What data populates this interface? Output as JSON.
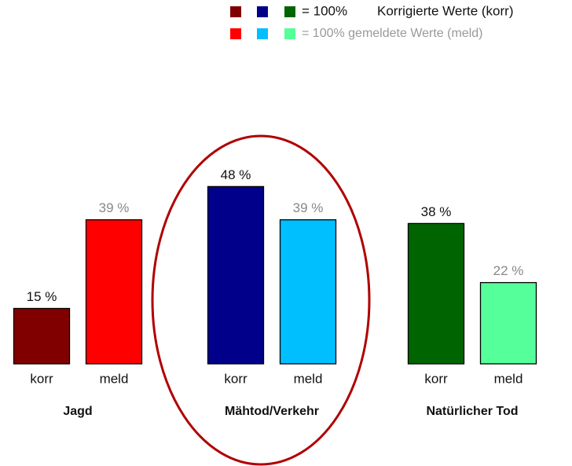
{
  "chart_data": {
    "type": "bar",
    "categories": [
      "Jagd",
      "Mähtod/Verkehr",
      "Natürlicher Tod"
    ],
    "series": [
      {
        "name": "korr",
        "colors": [
          "#800000",
          "#00008b",
          "#006400"
        ],
        "values": [
          15,
          48,
          38
        ],
        "value_labels": [
          "15 %",
          "48 %",
          "38 %"
        ]
      },
      {
        "name": "meld",
        "colors": [
          "#ff0000",
          "#00bfff",
          "#55ff99"
        ],
        "values": [
          39,
          39,
          22
        ],
        "value_labels": [
          "39 %",
          "39 %",
          "22 %"
        ]
      }
    ],
    "legend": [
      {
        "label": "= 100%",
        "text": "Korrigierte Werte (korr)"
      },
      {
        "label": "= 100% gemeldete Werte (meld)"
      }
    ]
  }
}
